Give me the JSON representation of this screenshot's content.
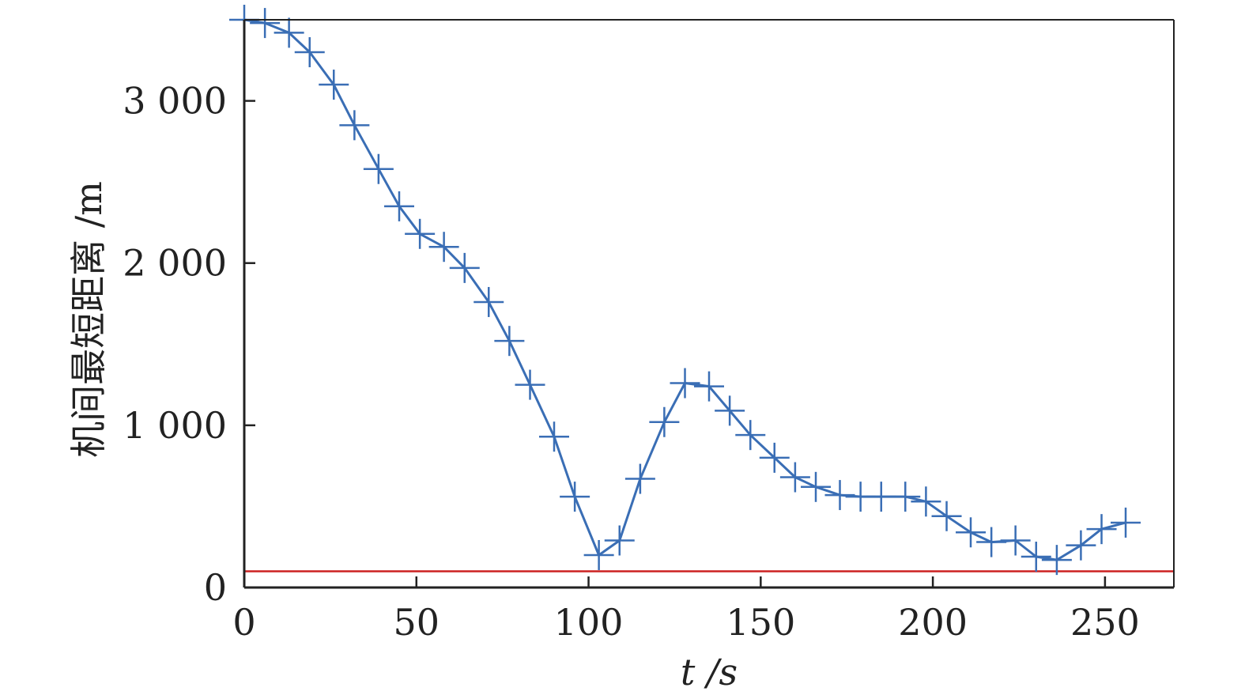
{
  "chart_data": {
    "type": "line",
    "title": "",
    "xlabel": "t /s",
    "ylabel": "机间最短距离 /m",
    "xlim": [
      0,
      270
    ],
    "ylim": [
      0,
      3500
    ],
    "x_ticks": [
      0,
      50,
      100,
      150,
      200,
      250
    ],
    "x_tick_labels": [
      "0",
      "50",
      "100",
      "150",
      "200",
      "250"
    ],
    "y_ticks": [
      0,
      1000,
      2000,
      3000
    ],
    "y_tick_labels": [
      "0",
      "1 000",
      "2 000",
      "3 000"
    ],
    "grid": false,
    "series": [
      {
        "color": "#3a6eb5",
        "marker": "plus",
        "x": [
          0,
          6,
          13,
          19,
          26,
          32,
          39,
          45,
          51,
          58,
          64,
          71,
          77,
          83,
          90,
          96,
          103,
          109,
          115,
          122,
          128,
          135,
          141,
          147,
          154,
          160,
          166,
          173,
          179,
          185,
          192,
          198,
          204,
          211,
          217,
          224,
          230,
          236,
          243,
          249,
          256
        ],
        "y": [
          3500,
          3480,
          3420,
          3300,
          3100,
          2850,
          2580,
          2350,
          2180,
          2100,
          1970,
          1760,
          1520,
          1250,
          930,
          560,
          200,
          290,
          670,
          1020,
          1260,
          1240,
          1090,
          940,
          800,
          680,
          620,
          570,
          560,
          560,
          560,
          530,
          440,
          340,
          280,
          290,
          190,
          170,
          260,
          360,
          400
        ]
      }
    ],
    "reference_line": {
      "y": 100,
      "color": "#cc2222"
    }
  }
}
